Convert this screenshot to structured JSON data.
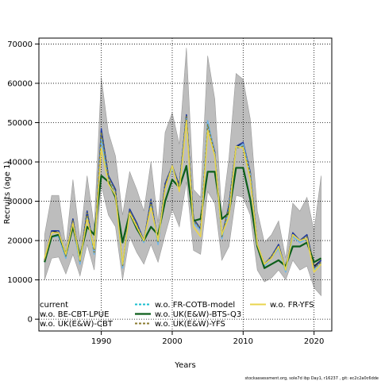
{
  "chart_data": {
    "type": "line",
    "xlabel": "Years",
    "ylabel": "Recruits (age 1)",
    "xlim": [
      1981.2,
      2022.5
    ],
    "ylim": [
      -3000,
      71500
    ],
    "xticks": [
      1990,
      2000,
      2010,
      2020
    ],
    "yticks": [
      0,
      10000,
      20000,
      30000,
      40000,
      50000,
      60000,
      70000
    ],
    "grid": true,
    "legend_placement": "bottom-left",
    "x": [
      1982,
      1983,
      1984,
      1985,
      1986,
      1987,
      1988,
      1989,
      1990,
      1991,
      1992,
      1993,
      1994,
      1995,
      1996,
      1997,
      1998,
      1999,
      2000,
      2001,
      2002,
      2003,
      2004,
      2005,
      2006,
      2007,
      2008,
      2009,
      2010,
      2011,
      2012,
      2013,
      2014,
      2015,
      2016,
      2017,
      2018,
      2019,
      2020,
      2021
    ],
    "band": {
      "color": "#bdbdbd",
      "lower": [
        10000,
        15500,
        15800,
        11500,
        16500,
        11000,
        19000,
        12500,
        34000,
        26500,
        23500,
        10000,
        21000,
        17000,
        14000,
        19000,
        14500,
        21500,
        28000,
        23500,
        35000,
        17500,
        16500,
        32500,
        29500,
        15000,
        18500,
        31500,
        31000,
        26500,
        12500,
        9500,
        10500,
        12500,
        10000,
        15000,
        12500,
        13500,
        8000,
        6000
      ],
      "upper": [
        21500,
        31500,
        31500,
        18500,
        35500,
        20000,
        36500,
        23500,
        61500,
        47500,
        41500,
        26500,
        37500,
        33000,
        27500,
        40000,
        24500,
        47500,
        52500,
        44500,
        69000,
        33000,
        31000,
        67000,
        56000,
        26500,
        41000,
        62500,
        61000,
        51000,
        27500,
        19500,
        21500,
        25000,
        15500,
        29500,
        27500,
        31000,
        22500,
        36500
      ]
    },
    "series": [
      {
        "name": "current",
        "color": "#1a1a1a",
        "values": [
          15000,
          22500,
          22000,
          16000,
          25500,
          14500,
          27500,
          17000,
          48000,
          36500,
          33000,
          13500,
          28000,
          24500,
          20000,
          30000,
          19500,
          34500,
          39000,
          34000,
          52000,
          25500,
          23000,
          50000,
          42500,
          21000,
          29000,
          44000,
          44500,
          37500,
          19000,
          14000,
          16000,
          19000,
          12500,
          22000,
          20000,
          21500,
          13500,
          15000
        ],
        "dash": "none",
        "width": 1.4
      },
      {
        "name": "w.o. BE-CBT-LPUE",
        "color": "#1f3aa6",
        "values": [
          15000,
          22500,
          22500,
          16000,
          25500,
          14500,
          27500,
          17000,
          48500,
          36500,
          33000,
          13500,
          28000,
          24500,
          20000,
          30500,
          19500,
          34500,
          39000,
          34000,
          52000,
          25500,
          23000,
          50000,
          42500,
          21000,
          29000,
          44000,
          45000,
          37500,
          19000,
          14000,
          16000,
          19000,
          12500,
          22000,
          20000,
          21500,
          13000,
          15000
        ],
        "dash": "none",
        "width": 1.4
      },
      {
        "name": "w.o. UK(E&W)-CBT",
        "color": "#6fb5e8",
        "values": [
          14500,
          21000,
          21000,
          15500,
          24000,
          14000,
          26000,
          16500,
          46000,
          35000,
          31500,
          13000,
          27000,
          23500,
          19500,
          29000,
          19000,
          33000,
          38500,
          33000,
          51000,
          24500,
          22500,
          50500,
          42000,
          20500,
          28000,
          43500,
          44500,
          37000,
          18500,
          13500,
          15500,
          18000,
          12000,
          21000,
          19500,
          20500,
          12500,
          14000
        ],
        "dash": "none",
        "width": 1.6
      },
      {
        "name": "w.o. FR-COTB-model",
        "color": "#17becf",
        "values": [
          15000,
          22000,
          22000,
          16000,
          25000,
          14500,
          27000,
          17000,
          47500,
          36000,
          32500,
          13500,
          27500,
          24000,
          20000,
          30000,
          19500,
          34000,
          39000,
          33500,
          51500,
          25000,
          23000,
          49500,
          42000,
          21000,
          28500,
          43500,
          44000,
          37000,
          19000,
          14000,
          16000,
          18500,
          12500,
          21500,
          20000,
          21000,
          13000,
          14500
        ],
        "dash": "3,2",
        "width": 1.4
      },
      {
        "name": "w.o. UK(E&W)-BTS-Q3",
        "color": "#0c5e1a",
        "values": [
          14500,
          21000,
          21500,
          16500,
          23500,
          16000,
          23500,
          21500,
          36500,
          35000,
          31000,
          19500,
          27000,
          23000,
          20000,
          23500,
          21500,
          30000,
          35500,
          33500,
          39000,
          25000,
          25500,
          37500,
          37500,
          25500,
          27000,
          38500,
          38500,
          30500,
          18500,
          13000,
          14000,
          15000,
          13500,
          18500,
          18500,
          19500,
          14500,
          15500
        ],
        "dash": "none",
        "width": 2.2
      },
      {
        "name": "w.o. UK(E&W)-YFS",
        "color": "#8a7a2e",
        "values": [
          15000,
          22000,
          22000,
          16000,
          25000,
          14500,
          27000,
          17000,
          47500,
          36000,
          32500,
          13500,
          27500,
          24000,
          20000,
          30000,
          19500,
          34000,
          39000,
          33500,
          51500,
          25000,
          23000,
          49500,
          42000,
          21000,
          28500,
          43500,
          44000,
          37000,
          19000,
          14000,
          16000,
          18500,
          12500,
          21500,
          20000,
          21000,
          13000,
          14500
        ],
        "dash": "3,2",
        "width": 1.4
      },
      {
        "name": "w.o. FR-YFS",
        "color": "#e8d44d",
        "values": [
          15500,
          22000,
          22000,
          16500,
          24500,
          15000,
          25500,
          18000,
          43500,
          34500,
          31500,
          14000,
          27000,
          23500,
          20000,
          28500,
          20000,
          33000,
          39000,
          32500,
          50500,
          23500,
          21000,
          48000,
          41500,
          21500,
          26000,
          44000,
          43500,
          35500,
          19000,
          14000,
          15500,
          18500,
          12500,
          21500,
          20000,
          20500,
          12000,
          14000
        ],
        "dash": "none",
        "width": 1.6
      }
    ]
  },
  "footer": "stockassessment.org, sole7d ibp Day1, r16237 , git: ec2c2a0c6dde"
}
